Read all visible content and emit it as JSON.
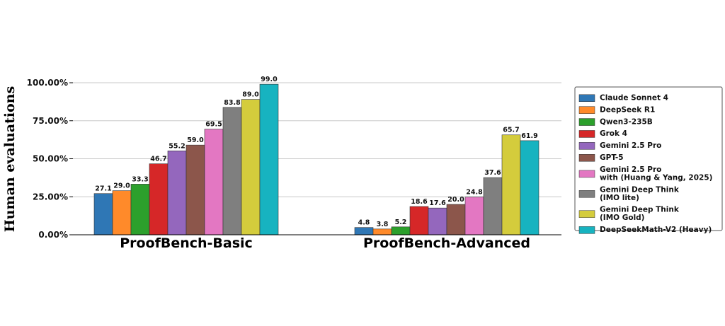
{
  "chart_data": {
    "type": "bar",
    "ylabel": "Human evaluations",
    "xlabel": "",
    "ylim": [
      0,
      100
    ],
    "yticks": [
      "0.00%",
      "25.00%",
      "50.00%",
      "75.00%",
      "100.00%"
    ],
    "ytick_values": [
      0,
      25,
      50,
      75,
      100
    ],
    "grid": "horizontal",
    "legend_position": "right",
    "categories": [
      "ProofBench-Basic",
      "ProofBench-Advanced"
    ],
    "series": [
      {
        "name": "Claude Sonnet 4",
        "name_lines": [
          "Claude Sonnet 4"
        ],
        "color": "#2f77b5",
        "values": [
          27.1,
          4.8
        ],
        "labels": [
          "27.1",
          "4.8"
        ]
      },
      {
        "name": "DeepSeek R1",
        "name_lines": [
          "DeepSeek R1"
        ],
        "color": "#ff8a2a",
        "values": [
          29.0,
          3.8
        ],
        "labels": [
          "29.0",
          "3.8"
        ]
      },
      {
        "name": "Qwen3-235B",
        "name_lines": [
          "Qwen3-235B"
        ],
        "color": "#2ca02c",
        "values": [
          33.3,
          5.2
        ],
        "labels": [
          "33.3",
          "5.2"
        ]
      },
      {
        "name": "Grok 4",
        "name_lines": [
          "Grok 4"
        ],
        "color": "#d62728",
        "values": [
          46.7,
          18.6
        ],
        "labels": [
          "46.7",
          "18.6"
        ]
      },
      {
        "name": "Gemini 2.5 Pro",
        "name_lines": [
          "Gemini 2.5 Pro"
        ],
        "color": "#9467bd",
        "values": [
          55.2,
          17.6
        ],
        "labels": [
          "55.2",
          "17.6"
        ]
      },
      {
        "name": "GPT-5",
        "name_lines": [
          "GPT-5"
        ],
        "color": "#8c564b",
        "values": [
          59.0,
          20.0
        ],
        "labels": [
          "59.0",
          "20.0"
        ]
      },
      {
        "name": "Gemini 2.5 Pro with (Huang & Yang, 2025)",
        "name_lines": [
          "Gemini 2.5 Pro",
          "with (Huang & Yang, 2025)"
        ],
        "color": "#e377c2",
        "values": [
          69.5,
          24.8
        ],
        "labels": [
          "69.5",
          "24.8"
        ]
      },
      {
        "name": "Gemini Deep Think (IMO lite)",
        "name_lines": [
          "Gemini Deep Think",
          "(IMO lite)"
        ],
        "color": "#7f7f7f",
        "values": [
          83.8,
          37.6
        ],
        "labels": [
          "83.8",
          "37.6"
        ]
      },
      {
        "name": "Gemini Deep Think (IMO Gold)",
        "name_lines": [
          "Gemini Deep Think",
          "(IMO Gold)"
        ],
        "color": "#d4cc3c",
        "values": [
          89.0,
          65.7
        ],
        "labels": [
          "89.0",
          "65.7"
        ]
      },
      {
        "name": "DeepSeekMath-V2 (Heavy)",
        "name_lines": [
          "DeepSeekMath-V2 (Heavy)"
        ],
        "color": "#17b3c0",
        "values": [
          99.0,
          61.9
        ],
        "labels": [
          "99.0",
          "61.9"
        ]
      }
    ]
  }
}
